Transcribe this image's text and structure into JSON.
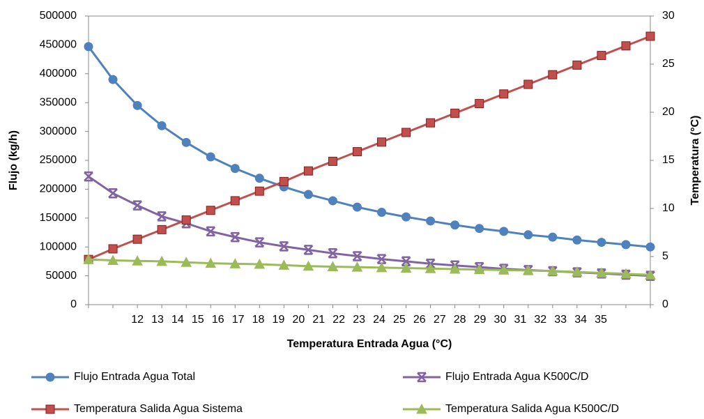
{
  "chart_data": {
    "type": "line",
    "xlabel": "Temperatura Entrada Agua (°C)",
    "ylabel": "Flujo (kg/h)",
    "y2label": "Temperatura (°C)",
    "categories": [
      "12",
      "13",
      "14",
      "15",
      "16",
      "17",
      "18",
      "19",
      "20",
      "21",
      "22",
      "23",
      "24",
      "25",
      "26",
      "27",
      "28",
      "29",
      "30",
      "31",
      "32",
      "33",
      "34",
      "35"
    ],
    "ylim": [
      0,
      500000
    ],
    "yticks": [
      0,
      50000,
      100000,
      150000,
      200000,
      250000,
      300000,
      350000,
      400000,
      450000,
      500000
    ],
    "y2lim": [
      0,
      30
    ],
    "y2ticks": [
      0,
      5,
      10,
      15,
      20,
      25,
      30
    ],
    "legend": "bottom",
    "series": [
      {
        "name": "Flujo Entrada Agua Total",
        "color": "#4f81bd",
        "marker": "circle",
        "values": [
          447000,
          390000,
          345000,
          310000,
          281000,
          256000,
          236000,
          219000,
          204000,
          191000,
          180000,
          169000,
          160000,
          152000,
          145000,
          138000,
          132000,
          127000,
          121000,
          117000,
          112000,
          108000,
          104000,
          100000
        ]
      },
      {
        "name": "Flujo Entrada Agua K500C/D",
        "color": "#8064a2",
        "marker": "star",
        "values": [
          222000,
          193000,
          172000,
          153000,
          141000,
          127000,
          117000,
          108000,
          101000,
          95000,
          89000,
          84000,
          79000,
          75000,
          71000,
          68000,
          65000,
          62000,
          60000,
          58000,
          56000,
          54000,
          52000,
          50000
        ]
      },
      {
        "name": "Temperatura Salida Agua Sistema",
        "color": "#c0504d",
        "marker": "square",
        "axis": "y2",
        "values": [
          4.7,
          5.8,
          6.8,
          7.8,
          8.8,
          9.8,
          10.8,
          11.8,
          12.8,
          13.9,
          14.9,
          15.9,
          16.9,
          17.9,
          18.9,
          19.9,
          20.9,
          21.9,
          22.9,
          23.9,
          24.9,
          25.9,
          26.9,
          27.9
        ]
      },
      {
        "name": "Temperatura Salida Agua K500C/D",
        "color": "#9bbb59",
        "marker": "triangle",
        "axis": "y2",
        "values": [
          4.7,
          4.6,
          4.55,
          4.5,
          4.4,
          4.3,
          4.25,
          4.2,
          4.1,
          4.0,
          3.95,
          3.9,
          3.85,
          3.8,
          3.75,
          3.7,
          3.65,
          3.6,
          3.55,
          3.5,
          3.4,
          3.3,
          3.2,
          3.1
        ]
      }
    ]
  }
}
